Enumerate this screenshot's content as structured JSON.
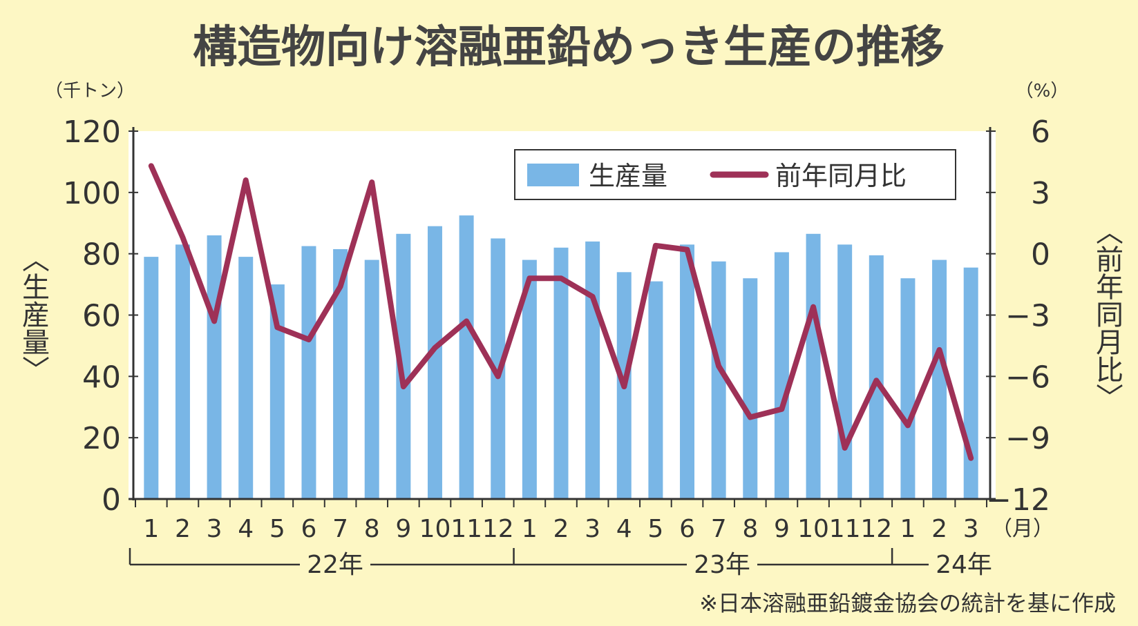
{
  "chart_data": {
    "type": "bar",
    "title": "構造物向け溶融亜鉛めっき生産の推移",
    "left_unit": "（千トン）",
    "right_unit": "（%）",
    "left_axis_label": "〈生産量〉",
    "right_axis_label": "〈前年同月比〉",
    "month_unit": "（月）",
    "ylim_left": [
      0,
      120
    ],
    "ylim_right": [
      -12,
      6
    ],
    "yticks_left": [
      "0",
      "20",
      "40",
      "60",
      "80",
      "100",
      "120"
    ],
    "yticks_right": [
      "−12",
      "−9",
      "−6",
      "−3",
      "0",
      "3",
      "6"
    ],
    "categories": [
      "1",
      "2",
      "3",
      "4",
      "5",
      "6",
      "7",
      "8",
      "9",
      "10",
      "11",
      "12",
      "1",
      "2",
      "3",
      "4",
      "5",
      "6",
      "7",
      "8",
      "9",
      "10",
      "11",
      "12",
      "1",
      "2",
      "3"
    ],
    "years": [
      {
        "label": "22年",
        "start": 0,
        "end": 11
      },
      {
        "label": "23年",
        "start": 12,
        "end": 23
      },
      {
        "label": "24年",
        "start": 24,
        "end": 26
      }
    ],
    "series": [
      {
        "name": "生産量",
        "type": "bar",
        "axis": "left",
        "color": "#79b6e6",
        "values": [
          79,
          83,
          86,
          79,
          70,
          82.5,
          81.5,
          78,
          86.5,
          89,
          92.5,
          85,
          78,
          82,
          84,
          74,
          71,
          83,
          77.5,
          72,
          80.5,
          86.5,
          83,
          79.5,
          72,
          78,
          75.5
        ]
      },
      {
        "name": "前年同月比",
        "type": "line",
        "axis": "right",
        "color": "#9e3157",
        "values": [
          4.3,
          0.8,
          -3.3,
          3.6,
          -3.6,
          -4.2,
          -1.6,
          3.5,
          -6.5,
          -4.6,
          -3.3,
          -6.0,
          -1.2,
          -1.2,
          -2.1,
          -6.5,
          0.4,
          0.2,
          -5.5,
          -8.0,
          -7.6,
          -2.6,
          -9.5,
          -6.2,
          -8.4,
          -4.7,
          -10.0
        ]
      }
    ],
    "note": "※日本溶融亜鉛鍍金協会の統計を基に作成",
    "legend_placement": "top-right"
  }
}
